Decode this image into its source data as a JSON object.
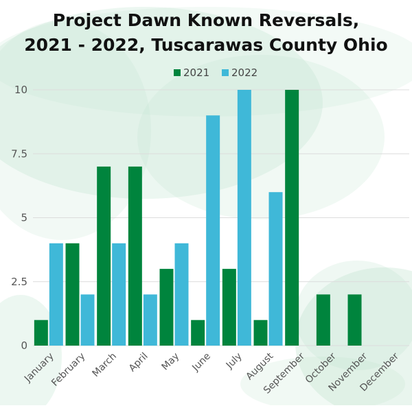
{
  "colors": {
    "series_2021": "#00843d",
    "series_2022": "#3fb8d8",
    "grid": "#dcdcdc",
    "wash": "#bfe3cf"
  },
  "chart_data": {
    "type": "bar",
    "title_lines": [
      "Project Dawn Known Reversals,",
      "2021 - 2022, Tuscarawas County Ohio"
    ],
    "categories": [
      "January",
      "February",
      "March",
      "April",
      "May",
      "June",
      "July",
      "August",
      "September",
      "October",
      "November",
      "December"
    ],
    "series": [
      {
        "name": "2021",
        "values": [
          1,
          4,
          7,
          7,
          3,
          1,
          3,
          1,
          10,
          2,
          2,
          0
        ]
      },
      {
        "name": "2022",
        "values": [
          4,
          2,
          4,
          2,
          4,
          9,
          10,
          6,
          null,
          null,
          null,
          null
        ]
      }
    ],
    "xlabel": "",
    "ylabel": "",
    "ylim": [
      0,
      10
    ],
    "yticks": [
      0,
      2.5,
      5,
      7.5,
      10
    ],
    "ytick_labels": [
      "0",
      "2.5",
      "5",
      "7.5",
      "10"
    ],
    "grid": true,
    "legend_position": "top-center"
  }
}
